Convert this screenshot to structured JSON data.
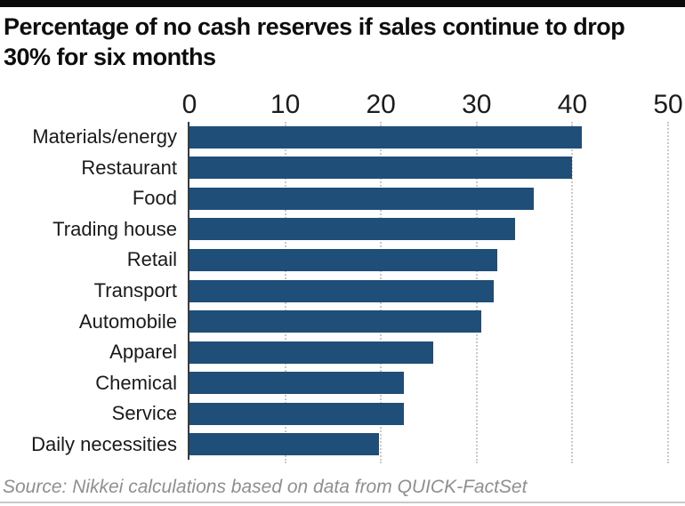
{
  "header": {
    "title": "Percentage of no cash reserves if sales continue to drop 30% for six months"
  },
  "footer": {
    "source": "Source: Nikkei calculations based on data from QUICK-FactSet"
  },
  "colors": {
    "bar": "#1f4e79",
    "top_bar": "#0b0b0b",
    "axis_line": "#3a3a3a",
    "gridline": "#c9c9c9",
    "title_text": "#0d0d0d",
    "label_text": "#1a1a1a",
    "source_text": "#8f8f8f",
    "divider": "#c9c9c9"
  },
  "chart_data": {
    "type": "bar",
    "orientation": "horizontal",
    "title": "Percentage of no cash reserves if sales continue to drop 30% for six months",
    "categories": [
      "Materials/energy",
      "Restaurant",
      "Food",
      "Trading house",
      "Retail",
      "Transport",
      "Automobile",
      "Apparel",
      "Chemical",
      "Service",
      "Daily necessities"
    ],
    "values": [
      41,
      40,
      36,
      34,
      32.2,
      31.8,
      30.5,
      25.5,
      22.4,
      22.4,
      19.8
    ],
    "unit": "%",
    "xlabel": "",
    "ylabel": "",
    "xlim": [
      0,
      50
    ],
    "xticks": [
      0,
      10,
      20,
      30,
      40,
      50
    ],
    "grid": "vertical-dotted",
    "legend": "none",
    "source": "Source: Nikkei calculations based on data from QUICK-FactSet"
  }
}
